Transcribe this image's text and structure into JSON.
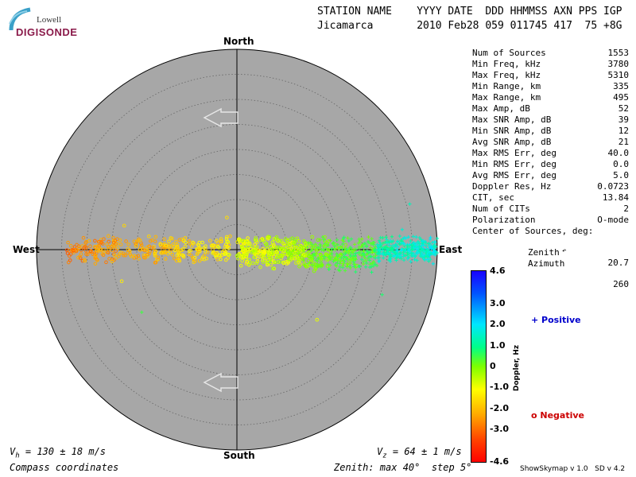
{
  "logo": {
    "top": "Lowell",
    "bottom": "DIGISONDE"
  },
  "header": {
    "line1": "STATION NAME    YYYY DATE  DDD HHMMSS AXN PPS IGP",
    "line2": "Jicamarca       2010 Feb28 059 011745 417  75 +8G"
  },
  "stats": [
    {
      "label": "Num of Sources",
      "value": "1553"
    },
    {
      "label": "Min Freq, kHz",
      "value": "3780"
    },
    {
      "label": "Max Freq, kHz",
      "value": "5310"
    },
    {
      "label": "Min Range, km",
      "value": "335"
    },
    {
      "label": "Max Range, km",
      "value": "495"
    },
    {
      "label": "Max Amp, dB",
      "value": "52"
    },
    {
      "label": "Max SNR Amp, dB",
      "value": "39"
    },
    {
      "label": "Min SNR Amp, dB",
      "value": "12"
    },
    {
      "label": "Avg SNR Amp, dB",
      "value": "21"
    },
    {
      "label": "Max RMS Err, deg",
      "value": "40.0"
    },
    {
      "label": "Min RMS Err, deg",
      "value": "0.0"
    },
    {
      "label": "Avg RMS Err, deg",
      "value": "5.0"
    },
    {
      "label": "Doppler Res, Hz",
      "value": "0.0723"
    },
    {
      "label": "CIT, sec",
      "value": "13.84"
    },
    {
      "label": "Num of CITs",
      "value": "2"
    },
    {
      "label": "Polarization",
      "value": "O-mode"
    }
  ],
  "center": {
    "title": "Center of Sources, deg:",
    "zenith_label": "Zenith",
    "zenith_value": "20.7",
    "azimuth_label": "Azimuth",
    "azimuth_value": "260"
  },
  "compass": {
    "north": "North",
    "south": "South",
    "west": "West",
    "east": "East"
  },
  "bottom": {
    "vh_label": "V",
    "vh_sub": "h",
    "vh_value": " = 130 ± 18 m/s",
    "vz_label": "V",
    "vz_sub": "z",
    "vz_value": " = 64 ± 1 m/s",
    "coords": "Compass coordinates",
    "zenith": "Zenith: max 40°  step 5°",
    "version": "ShowSkymap v 1.0   SD v 4.2"
  },
  "colorbar": {
    "label": "Doppler, Hz",
    "ticks": [
      "4.6",
      "3.0",
      "2.0",
      "1.0",
      "0",
      "-1.0",
      "-2.0",
      "-3.0",
      "-4.6"
    ],
    "tick_values": [
      4.6,
      3.0,
      2.0,
      1.0,
      0,
      -1.0,
      -2.0,
      -3.0,
      -4.6
    ],
    "range": [
      -4.6,
      4.6
    ]
  },
  "legend": {
    "positive": "+ Positive",
    "negative": "o Negative"
  },
  "chart_data": {
    "type": "scatter",
    "title": "",
    "xlabel": "",
    "ylabel": "",
    "max_zenith_deg": 40,
    "step_deg": 5,
    "num_sources": 1553,
    "source_clusters": [
      {
        "east_deg_min": -34,
        "east_deg_max": -1,
        "north_deg_min": -3,
        "north_deg_max": 3,
        "doppler_hz": -1.8
      },
      {
        "east_deg_min": 0,
        "east_deg_max": 14,
        "north_deg_min": -4,
        "north_deg_max": 3,
        "doppler_hz": -0.6
      },
      {
        "east_deg_min": 14,
        "east_deg_max": 28,
        "north_deg_min": -5,
        "north_deg_max": 3,
        "doppler_hz": 0.3
      },
      {
        "east_deg_min": 28,
        "east_deg_max": 40,
        "north_deg_min": -3,
        "north_deg_max": 3,
        "doppler_hz": 1.5
      }
    ],
    "outliers": [
      {
        "east_deg": -22.5,
        "north_deg": 4.8,
        "doppler_hz": -1.5
      },
      {
        "east_deg": -23,
        "north_deg": -6.3,
        "doppler_hz": -1.2
      },
      {
        "east_deg": -19,
        "north_deg": -12.5,
        "doppler_hz": 0.5
      },
      {
        "east_deg": -2,
        "north_deg": 6.4,
        "doppler_hz": -1.4
      },
      {
        "east_deg": 16,
        "north_deg": -14,
        "doppler_hz": -0.8
      },
      {
        "east_deg": 29,
        "north_deg": -9,
        "doppler_hz": 0.8
      },
      {
        "east_deg": 34.5,
        "north_deg": 9.1,
        "doppler_hz": 1.4
      },
      {
        "east_deg": 33,
        "north_deg": 4,
        "doppler_hz": 1.6
      }
    ],
    "grid": true
  }
}
